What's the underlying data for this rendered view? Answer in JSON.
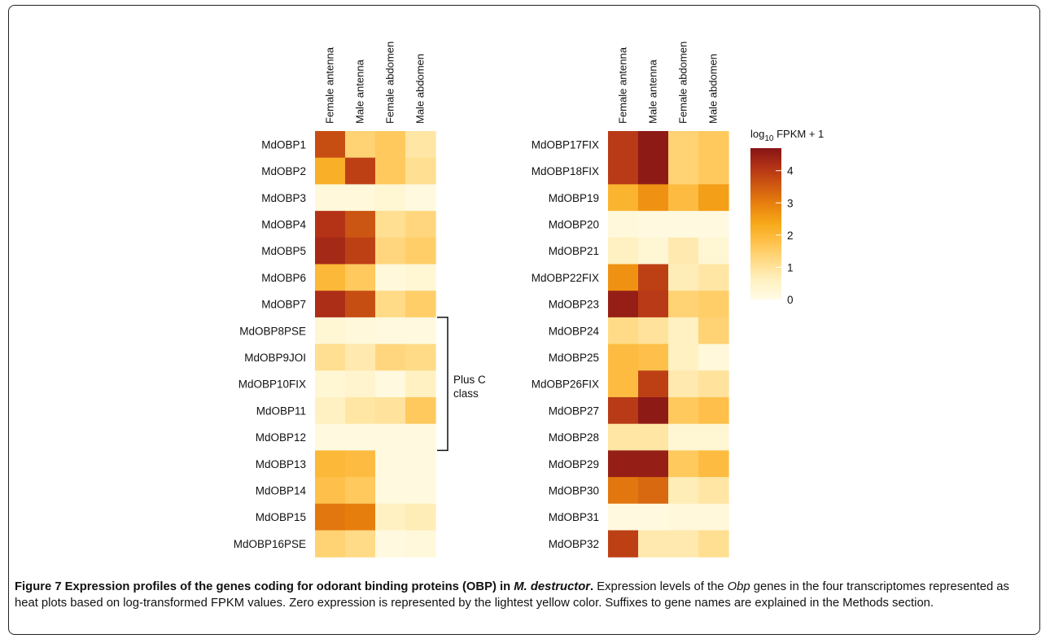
{
  "chart_data": [
    {
      "type": "heatmap",
      "columns": [
        "Female antenna",
        "Male antenna",
        "Female abdomen",
        "Male abdomen"
      ],
      "rows": [
        "MdOBP1",
        "MdOBP2",
        "MdOBP3",
        "MdOBP4",
        "MdOBP5",
        "MdOBP6",
        "MdOBP7",
        "MdOBP8PSE",
        "MdOBP9JOI",
        "MdOBP10FIX",
        "MdOBP11",
        "MdOBP12",
        "MdOBP13",
        "MdOBP14",
        "MdOBP15",
        "MdOBP16PSE"
      ],
      "values": [
        [
          3.7,
          1.4,
          1.6,
          0.9
        ],
        [
          2.2,
          3.9,
          1.6,
          1.1
        ],
        [
          0.2,
          0.2,
          0.3,
          0.1
        ],
        [
          4.1,
          3.6,
          1.1,
          1.3
        ],
        [
          4.3,
          3.9,
          1.3,
          1.5
        ],
        [
          2.0,
          1.6,
          0.2,
          0.3
        ],
        [
          4.2,
          3.7,
          1.2,
          1.5
        ],
        [
          0.3,
          0.2,
          0.1,
          0.1
        ],
        [
          1.1,
          0.8,
          1.3,
          1.2
        ],
        [
          0.3,
          0.4,
          0.1,
          0.6
        ],
        [
          0.6,
          0.9,
          1.0,
          1.6
        ],
        [
          0.1,
          0.1,
          0.1,
          0.1
        ],
        [
          2.0,
          1.9,
          0.1,
          0.1
        ],
        [
          1.8,
          1.6,
          0.1,
          0.1
        ],
        [
          3.1,
          3.0,
          0.6,
          0.7
        ],
        [
          1.4,
          1.2,
          0.1,
          0.2
        ]
      ],
      "bracket_label_line1": "Plus C",
      "bracket_label_line2": "class"
    },
    {
      "type": "heatmap",
      "columns": [
        "Female antenna",
        "Male antenna",
        "Female abdomen",
        "Male abdomen"
      ],
      "rows": [
        "MdOBP17FIX",
        "MdOBP18FIX",
        "MdOBP19",
        "MdOBP20",
        "MdOBP21",
        "MdOBP22FIX",
        "MdOBP23",
        "MdOBP24",
        "MdOBP25",
        "MdOBP26FIX",
        "MdOBP27",
        "MdOBP28",
        "MdOBP29",
        "MdOBP30",
        "MdOBP31",
        "MdOBP32"
      ],
      "values": [
        [
          4.0,
          4.6,
          1.4,
          1.6
        ],
        [
          4.0,
          4.6,
          1.4,
          1.6
        ],
        [
          2.1,
          2.7,
          1.9,
          2.5
        ],
        [
          0.2,
          0.1,
          0.1,
          0.1
        ],
        [
          0.6,
          0.3,
          0.8,
          0.3
        ],
        [
          2.7,
          3.9,
          0.7,
          0.9
        ],
        [
          4.5,
          4.0,
          1.4,
          1.5
        ],
        [
          1.2,
          1.0,
          0.6,
          1.4
        ],
        [
          1.9,
          1.8,
          0.6,
          0.2
        ],
        [
          1.9,
          3.9,
          0.8,
          1.0
        ],
        [
          4.0,
          4.6,
          1.6,
          1.8
        ],
        [
          0.9,
          0.9,
          0.3,
          0.3
        ],
        [
          4.5,
          4.5,
          1.6,
          1.9
        ],
        [
          3.1,
          3.3,
          0.7,
          0.9
        ],
        [
          0.1,
          0.1,
          0.2,
          0.2
        ],
        [
          3.9,
          0.8,
          0.8,
          1.1
        ]
      ]
    }
  ],
  "legend": {
    "title_prefix": "log",
    "title_subscript": "10",
    "title_suffix": " FPKM + 1",
    "ticks": [
      "4",
      "3",
      "2",
      "1",
      "0"
    ],
    "tick_values": [
      4,
      3,
      2,
      1,
      0
    ],
    "min": 0,
    "max": 4.7,
    "colors": [
      "#fffbe6",
      "#fff1c2",
      "#ffdc8a",
      "#ffc24d",
      "#f7a91a",
      "#e9820e",
      "#cf5a11",
      "#b33217",
      "#861516"
    ]
  },
  "caption": {
    "label": "Figure 7 Expression profiles of the genes coding for odorant binding proteins (OBP) in ",
    "species": "M. destructor",
    "label_end": ".",
    "text1": " Expression levels of the ",
    "gene": "Obp",
    "text2": " genes in the four transcriptomes represented as heat plots based on log-transformed FPKM values. Zero expression is represented by the lightest yellow color. Suffixes to gene names are explained in the Methods section."
  }
}
